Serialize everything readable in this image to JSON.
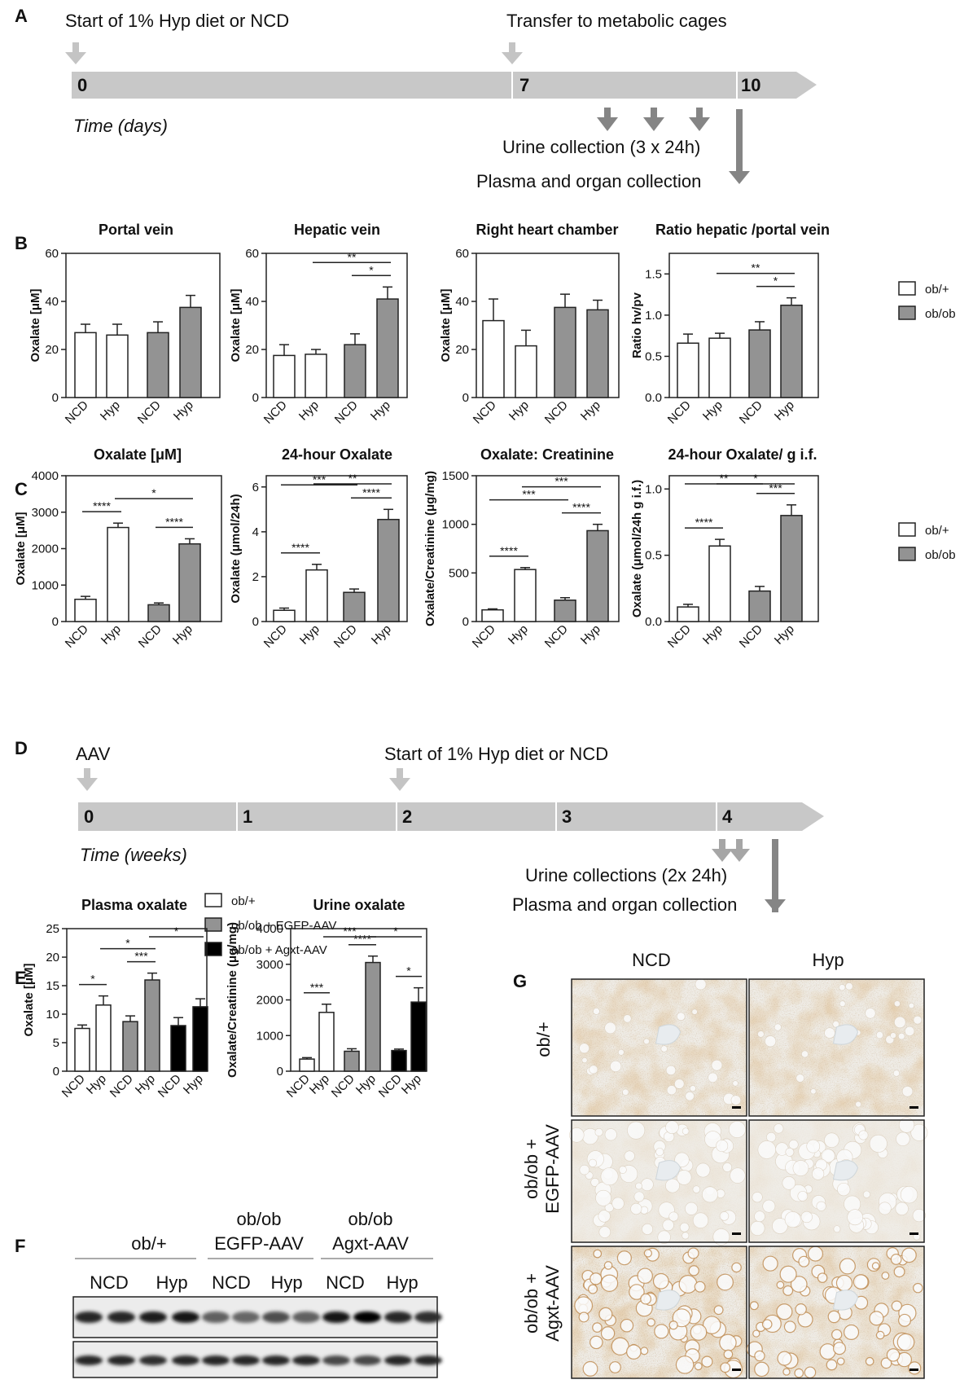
{
  "panel_labels": {
    "A": "A",
    "B": "B",
    "C": "C",
    "D": "D",
    "E": "E",
    "F": "F",
    "G": "G"
  },
  "timeline_a": {
    "event_start": "Start of 1% Hyp diet or NCD",
    "event_transfer": "Transfer to metabolic cages",
    "axis_label": "Time (days)",
    "ticks": [
      "0",
      "7",
      "10"
    ],
    "urine": "Urine collection (3 x 24h)",
    "plasma": "Plasma and organ collection",
    "colors": {
      "bar": "#c8c8c8",
      "arrow_light": "#c4c4c4",
      "arrow_dark": "#858585"
    }
  },
  "timeline_d": {
    "event_aav": "AAV",
    "event_start": "Start of 1% Hyp diet or NCD",
    "axis_label": "Time (weeks)",
    "ticks": [
      "0",
      "1",
      "2",
      "3",
      "4"
    ],
    "urine": "Urine collections (2x 24h)",
    "plasma": "Plasma and organ collection"
  },
  "legend_bc": {
    "items": [
      {
        "label": "ob/+",
        "color": "#ffffff"
      },
      {
        "label": "ob/ob",
        "color": "#939393"
      }
    ]
  },
  "legend_e": {
    "items": [
      {
        "label": "ob/+",
        "color": "#ffffff"
      },
      {
        "label": "ob/ob + EGFP-AAV",
        "color": "#939393"
      },
      {
        "label": "ob/ob + Agxt-AAV",
        "color": "#000000"
      }
    ]
  },
  "chart_data": [
    {
      "id": "b1",
      "type": "bar",
      "title": "Portal vein",
      "ylabel": "Oxalate [μM]",
      "ylim": [
        0,
        60
      ],
      "yticks": [
        "0",
        "20",
        "40",
        "60"
      ],
      "categories": [
        "NCD",
        "Hyp",
        "NCD",
        "Hyp"
      ],
      "values": [
        27,
        26,
        27,
        37.5
      ],
      "errors": [
        3.5,
        4.5,
        4.5,
        5
      ],
      "groups": [
        "ob/+",
        "ob/+",
        "ob/ob",
        "ob/ob"
      ],
      "sig": []
    },
    {
      "id": "b2",
      "type": "bar",
      "title": "Hepatic vein",
      "ylabel": "Oxalate [μM]",
      "ylim": [
        0,
        60
      ],
      "yticks": [
        "0",
        "20",
        "40",
        "60"
      ],
      "categories": [
        "NCD",
        "Hyp",
        "NCD",
        "Hyp"
      ],
      "values": [
        17.5,
        18,
        22,
        41
      ],
      "errors": [
        4.5,
        2,
        4.5,
        5
      ],
      "groups": [
        "ob/+",
        "ob/+",
        "ob/ob",
        "ob/ob"
      ],
      "sig": [
        {
          "from": 1,
          "to": 3,
          "label": "**"
        },
        {
          "from": 2,
          "to": 3,
          "label": "*"
        }
      ]
    },
    {
      "id": "b3",
      "type": "bar",
      "title": "Right heart chamber",
      "ylabel": "Oxalate [μM]",
      "ylim": [
        0,
        60
      ],
      "yticks": [
        "0",
        "20",
        "40",
        "60"
      ],
      "categories": [
        "NCD",
        "Hyp",
        "NCD",
        "Hyp"
      ],
      "values": [
        32,
        21.5,
        37.5,
        36.5
      ],
      "errors": [
        9,
        6.5,
        5.5,
        4
      ],
      "groups": [
        "ob/+",
        "ob/+",
        "ob/ob",
        "ob/ob"
      ],
      "sig": []
    },
    {
      "id": "b4",
      "type": "bar",
      "title": "Ratio hepatic /portal vein",
      "ylabel": "Ratio hv/pv",
      "ylim": [
        0,
        1.75
      ],
      "yticks": [
        "0.0",
        "0.5",
        "1.0",
        "1.5"
      ],
      "categories": [
        "NCD",
        "Hyp",
        "NCD",
        "Hyp"
      ],
      "values": [
        0.66,
        0.72,
        0.82,
        1.12
      ],
      "errors": [
        0.11,
        0.06,
        0.1,
        0.09
      ],
      "groups": [
        "ob/+",
        "ob/+",
        "ob/ob",
        "ob/ob"
      ],
      "sig": [
        {
          "from": 1,
          "to": 3,
          "label": "**"
        },
        {
          "from": 2,
          "to": 3,
          "label": "*"
        }
      ]
    },
    {
      "id": "c1",
      "type": "bar",
      "title": "Oxalate [μM]",
      "ylabel": "Oxalate [μM]",
      "ylim": [
        0,
        4000
      ],
      "yticks": [
        "0",
        "1000",
        "2000",
        "3000",
        "4000"
      ],
      "categories": [
        "NCD",
        "Hyp",
        "NCD",
        "Hyp"
      ],
      "values": [
        610,
        2580,
        460,
        2130
      ],
      "errors": [
        80,
        120,
        50,
        140
      ],
      "groups": [
        "ob/+",
        "ob/+",
        "ob/ob",
        "ob/ob"
      ],
      "sig": [
        {
          "from": 0,
          "to": 1,
          "label": "****"
        },
        {
          "from": 1,
          "to": 3,
          "label": "*"
        },
        {
          "from": 2,
          "to": 3,
          "label": "****"
        }
      ]
    },
    {
      "id": "c2",
      "type": "bar",
      "title": "24-hour Oxalate",
      "ylabel": "Oxalate (μmol/24h)",
      "ylim": [
        0,
        6.5
      ],
      "yticks": [
        "0",
        "2",
        "4",
        "6"
      ],
      "categories": [
        "NCD",
        "Hyp",
        "NCD",
        "Hyp"
      ],
      "values": [
        0.5,
        2.3,
        1.3,
        4.55
      ],
      "errors": [
        0.1,
        0.25,
        0.15,
        0.45
      ],
      "groups": [
        "ob/+",
        "ob/+",
        "ob/ob",
        "ob/ob"
      ],
      "sig": [
        {
          "from": 0,
          "to": 1,
          "label": "****"
        },
        {
          "from": 0,
          "to": 2,
          "label": "***"
        },
        {
          "from": 1,
          "to": 3,
          "label": "**"
        },
        {
          "from": 2,
          "to": 3,
          "label": "****"
        }
      ]
    },
    {
      "id": "c3",
      "type": "bar",
      "title": "Oxalate: Creatinine",
      "ylabel": "Oxalate/Creatinine (μg/mg)",
      "ylim": [
        0,
        1500
      ],
      "yticks": [
        "0",
        "500",
        "1000",
        "1500"
      ],
      "categories": [
        "NCD",
        "Hyp",
        "NCD",
        "Hyp"
      ],
      "values": [
        120,
        535,
        220,
        935
      ],
      "errors": [
        10,
        20,
        25,
        65
      ],
      "groups": [
        "ob/+",
        "ob/+",
        "ob/ob",
        "ob/ob"
      ],
      "sig": [
        {
          "from": 0,
          "to": 1,
          "label": "****"
        },
        {
          "from": 0,
          "to": 2,
          "label": "***"
        },
        {
          "from": 1,
          "to": 3,
          "label": "***"
        },
        {
          "from": 2,
          "to": 3,
          "label": "****"
        }
      ]
    },
    {
      "id": "c4",
      "type": "bar",
      "title": "24-hour Oxalate/ g i.f.",
      "ylabel": "Oxalate (μmol/24h g i.f.)",
      "ylim": [
        0,
        1.1
      ],
      "yticks": [
        "0.0",
        "0.5",
        "1.0"
      ],
      "categories": [
        "NCD",
        "Hyp",
        "NCD",
        "Hyp"
      ],
      "values": [
        0.11,
        0.57,
        0.23,
        0.8
      ],
      "errors": [
        0.02,
        0.05,
        0.035,
        0.08
      ],
      "groups": [
        "ob/+",
        "ob/+",
        "ob/ob",
        "ob/ob"
      ],
      "sig": [
        {
          "from": 0,
          "to": 1,
          "label": "****"
        },
        {
          "from": 0,
          "to": 2,
          "label": "**"
        },
        {
          "from": 1,
          "to": 3,
          "label": "*"
        },
        {
          "from": 2,
          "to": 3,
          "label": "***"
        }
      ]
    },
    {
      "id": "e1",
      "type": "bar",
      "title": "Plasma oxalate",
      "ylabel": "Oxalate [μM]",
      "ylim": [
        0,
        25
      ],
      "yticks": [
        "0",
        "5",
        "10",
        "15",
        "20",
        "25"
      ],
      "categories": [
        "NCD",
        "Hyp",
        "NCD",
        "Hyp",
        "NCD",
        "Hyp"
      ],
      "values": [
        7.5,
        11.6,
        8.7,
        16,
        8,
        11.3
      ],
      "errors": [
        0.6,
        1.6,
        1,
        1.2,
        1.4,
        1.4
      ],
      "groups": [
        "ob/+",
        "ob/+",
        "ob/ob + EGFP-AAV",
        "ob/ob + EGFP-AAV",
        "ob/ob + Agxt-AAV",
        "ob/ob + Agxt-AAV"
      ],
      "sig": [
        {
          "from": 0,
          "to": 1,
          "label": "*"
        },
        {
          "from": 1,
          "to": 3,
          "label": "*"
        },
        {
          "from": 2,
          "to": 3,
          "label": "***"
        },
        {
          "from": 3,
          "to": 5,
          "label": "*"
        }
      ]
    },
    {
      "id": "e2",
      "type": "bar",
      "title": "Urine oxalate",
      "ylabel": "Oxalate/Creatinine (μg/mg)",
      "ylim": [
        0,
        4000
      ],
      "yticks": [
        "0",
        "1000",
        "2000",
        "3000",
        "4000"
      ],
      "categories": [
        "NCD",
        "Hyp",
        "NCD",
        "Hyp",
        "NCD",
        "Hyp"
      ],
      "values": [
        340,
        1650,
        560,
        3050,
        580,
        1940
      ],
      "errors": [
        40,
        230,
        70,
        180,
        40,
        400
      ],
      "groups": [
        "ob/+",
        "ob/+",
        "ob/ob + EGFP-AAV",
        "ob/ob + EGFP-AAV",
        "ob/ob + Agxt-AAV",
        "ob/ob + Agxt-AAV"
      ],
      "sig": [
        {
          "from": 0,
          "to": 1,
          "label": "***"
        },
        {
          "from": 1,
          "to": 3,
          "label": "***"
        },
        {
          "from": 2,
          "to": 3,
          "label": "****"
        },
        {
          "from": 3,
          "to": 5,
          "label": "*"
        },
        {
          "from": 4,
          "to": 5,
          "label": "*"
        }
      ]
    }
  ],
  "panel_f": {
    "group_headers": [
      {
        "line1": "",
        "line2": "ob/+"
      },
      {
        "line1": "ob/ob",
        "line2": "EGFP-AAV"
      },
      {
        "line1": "ob/ob",
        "line2": "Agxt-AAV"
      }
    ],
    "lanes": [
      "NCD",
      "Hyp",
      "NCD",
      "Hyp",
      "NCD",
      "Hyp"
    ],
    "band1_intensity": [
      0.85,
      0.85,
      0.88,
      0.9,
      0.62,
      0.6,
      0.7,
      0.62,
      0.92,
      1.0,
      0.85,
      0.82
    ],
    "band2_intensity": [
      0.85,
      0.85,
      0.82,
      0.85,
      0.85,
      0.85,
      0.85,
      0.85,
      0.72,
      0.72,
      0.85,
      0.85
    ]
  },
  "panel_g": {
    "columns": [
      "NCD",
      "Hyp"
    ],
    "rows": [
      {
        "line1": "ob/+",
        "line2": "",
        "line3": ""
      },
      {
        "line1": "ob/ob +",
        "line2": "EGFP-AAV",
        "line3": ""
      },
      {
        "line1": "ob/ob +",
        "line2": "Agxt-AAV",
        "line3": ""
      }
    ],
    "stain_level": [
      0.8,
      0.8,
      0.25,
      0.2,
      0.95,
      0.75
    ],
    "colors": {
      "background": "#efece6",
      "stain": "#c2915a",
      "vacuole": "#fbfbfb"
    }
  }
}
